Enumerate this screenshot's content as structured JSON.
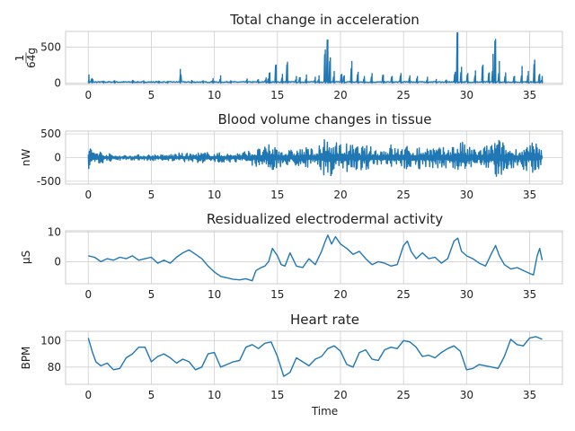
{
  "figure": {
    "xlabel": "Time",
    "xlim": [
      -1.8,
      37.6
    ]
  },
  "colors": {
    "series": "#1f77b4",
    "grid": "#cfcfcf",
    "frame": "#cccccc"
  },
  "chart_data": [
    {
      "type": "line",
      "title": "Total change in acceleration",
      "ylabel": "1\n64g",
      "ylim": [
        -20,
        720
      ],
      "yticks": [
        0,
        500
      ],
      "xticks": [
        0,
        5,
        10,
        15,
        20,
        25,
        30,
        35
      ],
      "spikes": [
        [
          0.05,
          110
        ],
        [
          0.3,
          60
        ],
        [
          1.2,
          25
        ],
        [
          2.1,
          30
        ],
        [
          3.5,
          35
        ],
        [
          4.4,
          30
        ],
        [
          5.6,
          25
        ],
        [
          6.3,
          20
        ],
        [
          7.3,
          190
        ],
        [
          8.2,
          35
        ],
        [
          9.1,
          30
        ],
        [
          9.9,
          60
        ],
        [
          10.5,
          100
        ],
        [
          11.3,
          30
        ],
        [
          12.6,
          55
        ],
        [
          13.5,
          45
        ],
        [
          14.1,
          70
        ],
        [
          14.4,
          140
        ],
        [
          14.3,
          60
        ],
        [
          14.9,
          250
        ],
        [
          15.4,
          120
        ],
        [
          15.8,
          290
        ],
        [
          16.5,
          90
        ],
        [
          16.8,
          75
        ],
        [
          17.3,
          110
        ],
        [
          18.0,
          80
        ],
        [
          18.3,
          100
        ],
        [
          18.8,
          460
        ],
        [
          19.0,
          600
        ],
        [
          19.2,
          350
        ],
        [
          19.5,
          160
        ],
        [
          20.1,
          120
        ],
        [
          20.3,
          100
        ],
        [
          20.9,
          300
        ],
        [
          21.4,
          150
        ],
        [
          21.9,
          90
        ],
        [
          22.5,
          130
        ],
        [
          23.4,
          110
        ],
        [
          24.1,
          90
        ],
        [
          24.8,
          130
        ],
        [
          25.5,
          100
        ],
        [
          26.1,
          90
        ],
        [
          26.9,
          80
        ],
        [
          27.6,
          50
        ],
        [
          28.4,
          40
        ],
        [
          29.1,
          150
        ],
        [
          29.3,
          700
        ],
        [
          29.6,
          220
        ],
        [
          30.1,
          130
        ],
        [
          30.7,
          170
        ],
        [
          31.3,
          250
        ],
        [
          31.8,
          140
        ],
        [
          32.1,
          400
        ],
        [
          32.3,
          610
        ],
        [
          32.6,
          300
        ],
        [
          33.1,
          140
        ],
        [
          33.8,
          90
        ],
        [
          34.4,
          230
        ],
        [
          34.9,
          160
        ],
        [
          35.4,
          320
        ],
        [
          35.8,
          120
        ],
        [
          36.0,
          90
        ]
      ],
      "baseline": 6
    },
    {
      "type": "line",
      "title": "Blood volume changes in tissue",
      "ylabel": "nW",
      "ylim": [
        -560,
        560
      ],
      "yticks": [
        500,
        0,
        -500
      ],
      "xticks": [
        0,
        5,
        10,
        15,
        20,
        25,
        30,
        35
      ],
      "envelope": [
        [
          0,
          250
        ],
        [
          0.5,
          230
        ],
        [
          1,
          140
        ],
        [
          2,
          60
        ],
        [
          3,
          50
        ],
        [
          4,
          60
        ],
        [
          5,
          70
        ],
        [
          6,
          60
        ],
        [
          7,
          100
        ],
        [
          8,
          90
        ],
        [
          9,
          120
        ],
        [
          10,
          110
        ],
        [
          11,
          90
        ],
        [
          12,
          120
        ],
        [
          13,
          170
        ],
        [
          14,
          230
        ],
        [
          14.5,
          300
        ],
        [
          15,
          280
        ],
        [
          15.5,
          200
        ],
        [
          16,
          160
        ],
        [
          17,
          230
        ],
        [
          18,
          200
        ],
        [
          18.5,
          300
        ],
        [
          19,
          480
        ],
        [
          19.5,
          380
        ],
        [
          20,
          330
        ],
        [
          21,
          280
        ],
        [
          22,
          260
        ],
        [
          23,
          200
        ],
        [
          24,
          300
        ],
        [
          24.5,
          230
        ],
        [
          25,
          260
        ],
        [
          26,
          230
        ],
        [
          27,
          280
        ],
        [
          28,
          200
        ],
        [
          29,
          300
        ],
        [
          29.5,
          410
        ],
        [
          30,
          230
        ],
        [
          31,
          200
        ],
        [
          32,
          320
        ],
        [
          32.3,
          490
        ],
        [
          33,
          300
        ],
        [
          34,
          200
        ],
        [
          35,
          300
        ],
        [
          35.5,
          340
        ],
        [
          36,
          150
        ]
      ]
    },
    {
      "type": "line",
      "title": "Residualized electrodermal activity",
      "ylabel": "μS",
      "ylim": [
        -7.5,
        10.5
      ],
      "yticks": [
        0,
        10
      ],
      "xticks": [
        0,
        5,
        10,
        15,
        20,
        25,
        30,
        35
      ],
      "x": [
        0,
        0.5,
        1,
        1.5,
        2,
        2.5,
        3,
        3.5,
        4,
        4.5,
        5,
        5.5,
        6,
        6.5,
        7,
        7.5,
        8,
        8.5,
        9,
        9.5,
        10,
        10.5,
        11,
        11.5,
        12,
        12.5,
        13,
        13.3,
        13.7,
        14,
        14.3,
        14.6,
        15,
        15.3,
        15.6,
        16,
        16.5,
        17,
        17.5,
        18,
        18.5,
        18.8,
        19,
        19.3,
        19.6,
        20,
        20.5,
        21,
        21.5,
        22,
        22.5,
        23,
        23.5,
        24,
        24.5,
        25,
        25.3,
        25.6,
        26,
        26.5,
        27,
        27.5,
        28,
        28.5,
        29,
        29.3,
        29.6,
        30,
        30.5,
        31,
        31.5,
        32,
        32.3,
        32.6,
        33,
        33.5,
        34,
        34.5,
        35,
        35.3,
        35.6,
        35.8,
        36
      ],
      "y": [
        2,
        1.5,
        0,
        1,
        0.5,
        1.5,
        1,
        2,
        0.5,
        1,
        1.5,
        -0.5,
        0.5,
        -0.5,
        1.5,
        3,
        4,
        2.5,
        1,
        -1.5,
        -3.5,
        -5,
        -5.5,
        -6,
        -6.2,
        -5.8,
        -6.5,
        -3,
        -2,
        -1.5,
        0,
        4.5,
        2,
        -1,
        -1.5,
        3,
        -1.5,
        -2,
        1,
        -1,
        3.5,
        7,
        9,
        6,
        8.5,
        6,
        4.5,
        2.5,
        3.5,
        1,
        -1,
        0,
        -0.5,
        -1.5,
        -1,
        5.5,
        7,
        3.5,
        1,
        3,
        1,
        1.5,
        -0.5,
        1,
        7,
        8,
        3.5,
        2,
        1,
        -0.5,
        -1.5,
        3,
        5.5,
        2,
        -1,
        -2.5,
        -2,
        -3,
        -4,
        -4.5,
        2,
        4.5,
        0.5
      ]
    },
    {
      "type": "line",
      "title": "Heart rate",
      "ylabel": "BPM",
      "ylim": [
        67,
        107
      ],
      "yticks": [
        80,
        100
      ],
      "xticks": [
        0,
        5,
        10,
        15,
        20,
        25,
        30,
        35
      ],
      "x": [
        0,
        0.3,
        0.6,
        1,
        1.5,
        2,
        2.5,
        3,
        3.5,
        4,
        4.5,
        5,
        5.5,
        6,
        6.5,
        7,
        7.5,
        8,
        8.5,
        9,
        9.5,
        10,
        10.5,
        11,
        11.5,
        12,
        12.5,
        13,
        13.5,
        14,
        14.5,
        15,
        15.5,
        16,
        16.5,
        17,
        17.5,
        18,
        18.5,
        19,
        19.5,
        20,
        20.5,
        21,
        21.5,
        22,
        22.5,
        23,
        23.5,
        24,
        24.5,
        25,
        25.5,
        26,
        26.5,
        27,
        27.5,
        28,
        28.5,
        29,
        29.5,
        30,
        30.5,
        31,
        31.5,
        32,
        32.5,
        33,
        33.5,
        34,
        34.5,
        35,
        35.5,
        36
      ],
      "y": [
        102,
        92,
        84,
        81,
        83,
        78,
        79,
        87,
        90,
        95,
        95,
        84,
        88,
        90,
        87,
        83,
        86,
        84,
        78,
        80,
        90,
        91,
        80,
        82,
        84,
        85,
        95,
        97,
        94,
        98,
        99,
        88,
        73,
        76,
        87,
        84,
        81,
        86,
        88,
        94,
        96,
        92,
        82,
        80,
        91,
        93,
        86,
        85,
        93,
        95,
        94,
        100,
        99,
        95,
        88,
        89,
        87,
        91,
        94,
        96,
        92,
        78,
        79,
        82,
        81,
        80,
        79,
        88,
        101,
        97,
        96,
        102,
        103,
        101
      ]
    }
  ]
}
